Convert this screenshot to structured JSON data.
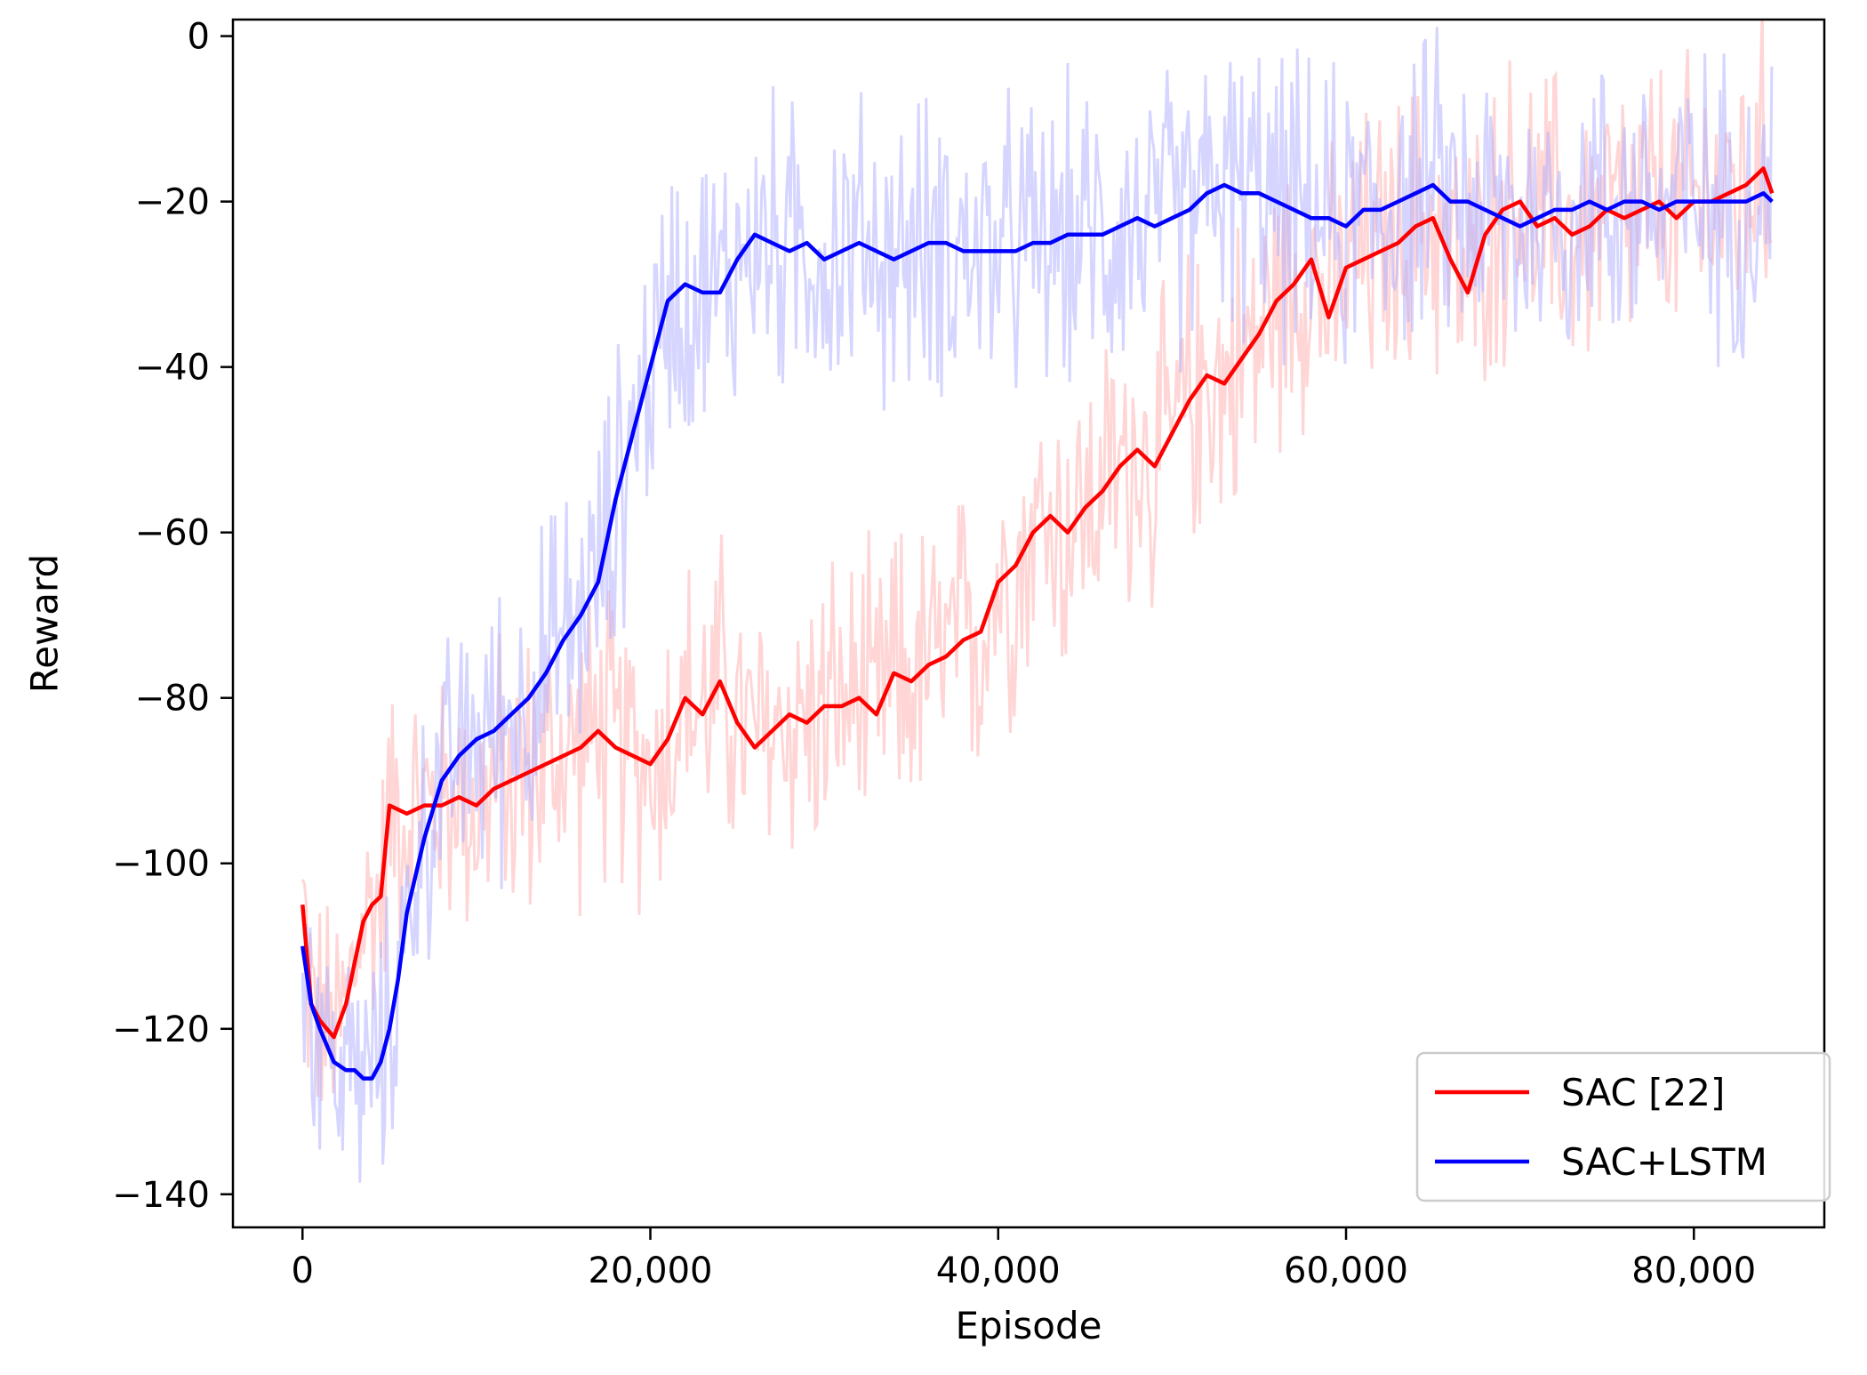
{
  "chart_data": {
    "type": "line",
    "title": "",
    "xlabel": "Episode",
    "ylabel": "Reward",
    "xlim": [
      -4000,
      87500
    ],
    "ylim": [
      -144,
      2
    ],
    "x_ticks": [
      0,
      20000,
      40000,
      60000,
      80000
    ],
    "x_tick_labels": [
      "0",
      "20,000",
      "40,000",
      "60,000",
      "80,000"
    ],
    "y_ticks": [
      0,
      -20,
      -40,
      -60,
      -80,
      -100,
      -120,
      -140
    ],
    "y_tick_labels": [
      "0",
      "−20",
      "−40",
      "−60",
      "−80",
      "−100",
      "−120",
      "−140"
    ],
    "grid": false,
    "legend_position": "lower-right",
    "series": [
      {
        "name": "SAC [22]",
        "color": "#ff0000",
        "x": [
          0,
          500,
          1000,
          1800,
          2500,
          3000,
          3500,
          4000,
          4500,
          5000,
          6000,
          7000,
          8000,
          9000,
          10000,
          11000,
          12000,
          13000,
          14000,
          15000,
          16000,
          17000,
          18000,
          19000,
          20000,
          21000,
          22000,
          23000,
          24000,
          25000,
          26000,
          27000,
          28000,
          29000,
          30000,
          31000,
          32000,
          33000,
          34000,
          35000,
          36000,
          37000,
          38000,
          39000,
          40000,
          41000,
          42000,
          43000,
          44000,
          45000,
          46000,
          47000,
          48000,
          49000,
          50000,
          51000,
          52000,
          53000,
          54000,
          55000,
          56000,
          57000,
          58000,
          59000,
          60000,
          61000,
          62000,
          63000,
          64000,
          65000,
          66000,
          67000,
          68000,
          69000,
          70000,
          71000,
          72000,
          73000,
          74000,
          75000,
          76000,
          77000,
          78000,
          79000,
          80000,
          81000,
          82000,
          83000,
          84000,
          84500
        ],
        "values": [
          -105,
          -117,
          -119,
          -121,
          -117,
          -112,
          -107,
          -105,
          -104,
          -93,
          -94,
          -93,
          -93,
          -92,
          -93,
          -91,
          -90,
          -89,
          -88,
          -87,
          -86,
          -84,
          -86,
          -87,
          -88,
          -85,
          -80,
          -82,
          -78,
          -83,
          -86,
          -84,
          -82,
          -83,
          -81,
          -81,
          -80,
          -82,
          -77,
          -78,
          -76,
          -75,
          -73,
          -72,
          -66,
          -64,
          -60,
          -58,
          -60,
          -57,
          -55,
          -52,
          -50,
          -52,
          -48,
          -44,
          -41,
          -42,
          -39,
          -36,
          -32,
          -30,
          -27,
          -34,
          -28,
          -27,
          -26,
          -25,
          -23,
          -22,
          -27,
          -31,
          -24,
          -21,
          -20,
          -23,
          -22,
          -24,
          -23,
          -21,
          -22,
          -21,
          -20,
          -22,
          -20,
          -20,
          -19,
          -18,
          -16,
          -19
        ]
      },
      {
        "name": "SAC+LSTM",
        "color": "#0000ff",
        "x": [
          0,
          500,
          1000,
          1800,
          2500,
          3000,
          3500,
          4000,
          4500,
          5000,
          5500,
          6000,
          7000,
          8000,
          9000,
          10000,
          11000,
          12000,
          13000,
          14000,
          15000,
          16000,
          17000,
          18000,
          19000,
          20000,
          21000,
          22000,
          23000,
          24000,
          25000,
          26000,
          27000,
          28000,
          29000,
          30000,
          31000,
          32000,
          33000,
          34000,
          35000,
          36000,
          37000,
          38000,
          39000,
          40000,
          41000,
          42000,
          43000,
          44000,
          45000,
          46000,
          47000,
          48000,
          49000,
          50000,
          51000,
          52000,
          53000,
          54000,
          55000,
          56000,
          57000,
          58000,
          59000,
          60000,
          61000,
          62000,
          63000,
          64000,
          65000,
          66000,
          67000,
          68000,
          69000,
          70000,
          71000,
          72000,
          73000,
          74000,
          75000,
          76000,
          77000,
          78000,
          79000,
          80000,
          81000,
          82000,
          83000,
          84000,
          84500
        ],
        "values": [
          -110,
          -117,
          -120,
          -124,
          -125,
          -125,
          -126,
          -126,
          -124,
          -120,
          -114,
          -106,
          -97,
          -90,
          -87,
          -85,
          -84,
          -82,
          -80,
          -77,
          -73,
          -70,
          -66,
          -56,
          -48,
          -40,
          -32,
          -30,
          -31,
          -31,
          -27,
          -24,
          -25,
          -26,
          -25,
          -27,
          -26,
          -25,
          -26,
          -27,
          -26,
          -25,
          -25,
          -26,
          -26,
          -26,
          -26,
          -25,
          -25,
          -24,
          -24,
          -24,
          -23,
          -22,
          -23,
          -22,
          -21,
          -19,
          -18,
          -19,
          -19,
          -20,
          -21,
          -22,
          -22,
          -23,
          -21,
          -21,
          -20,
          -19,
          -18,
          -20,
          -20,
          -21,
          -22,
          -23,
          -22,
          -21,
          -21,
          -20,
          -21,
          -20,
          -20,
          -21,
          -20,
          -20,
          -20,
          -20,
          -20,
          -19,
          -20
        ]
      }
    ]
  }
}
